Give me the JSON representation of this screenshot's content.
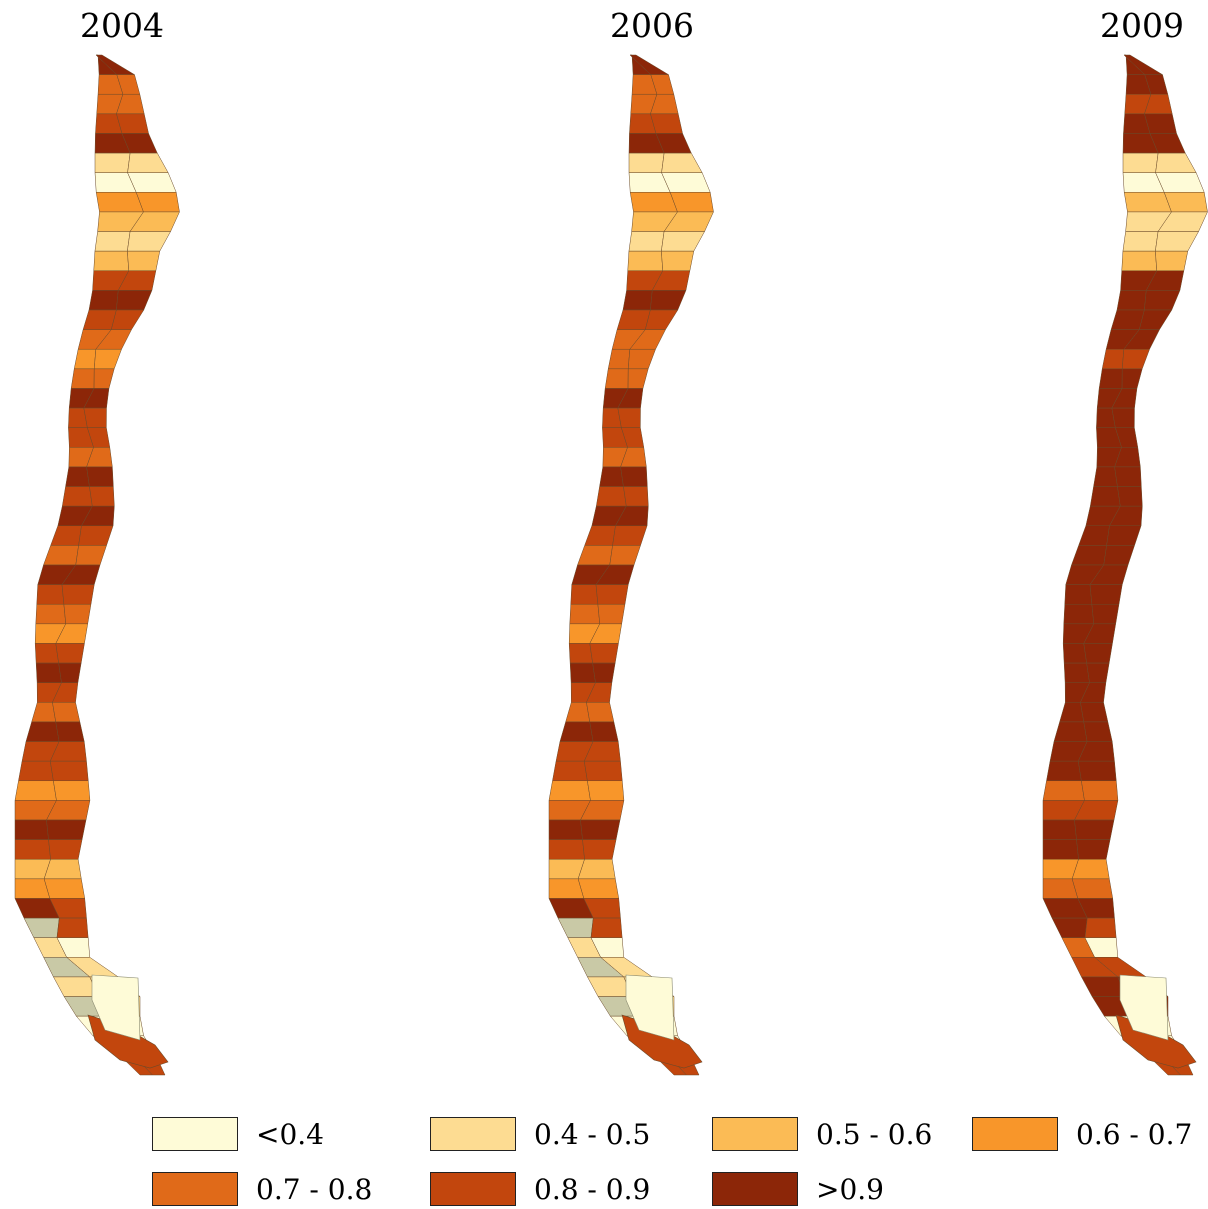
{
  "panels": [
    {
      "year": "2004"
    },
    {
      "year": "2006"
    },
    {
      "year": "2009"
    }
  ],
  "legend": [
    {
      "label": "<0.4",
      "color": "#fefbd7"
    },
    {
      "label": "0.4 - 0.5",
      "color": "#fddc92"
    },
    {
      "label": "0.5 - 0.6",
      "color": "#fbbb55"
    },
    {
      "label": "0.6 - 0.7",
      "color": "#f8962a"
    },
    {
      "label": "0.7 - 0.8",
      "color": "#e06a19"
    },
    {
      "label": "0.8 - 0.9",
      "color": "#c2460d"
    },
    {
      "label": ">0.9",
      "color": "#8c2608"
    }
  ],
  "fjord_color": "#c9c9a6",
  "chart_data": {
    "type": "choropleth",
    "classes": [
      "<0.4",
      "0.4 - 0.5",
      "0.5 - 0.6",
      "0.6 - 0.7",
      "0.7 - 0.8",
      "0.8 - 0.9",
      ">0.9"
    ],
    "maps": [
      {
        "year": "2004",
        "zones": [
          6,
          4,
          4,
          5,
          6,
          1,
          0,
          3,
          2,
          1,
          2,
          5,
          6,
          5,
          4,
          3,
          4,
          6,
          5,
          5,
          4,
          6,
          5,
          6,
          5,
          4,
          6,
          5,
          4,
          3,
          5,
          6,
          5,
          4,
          6,
          5,
          5,
          3,
          4,
          6,
          5,
          2,
          3,
          6,
          5,
          1,
          1,
          1,
          1,
          0,
          0,
          5
        ]
      },
      {
        "year": "2006",
        "zones": [
          6,
          4,
          4,
          5,
          6,
          1,
          0,
          3,
          2,
          1,
          2,
          5,
          6,
          5,
          4,
          4,
          4,
          6,
          5,
          5,
          4,
          6,
          5,
          6,
          5,
          4,
          6,
          5,
          4,
          3,
          5,
          6,
          5,
          4,
          6,
          5,
          5,
          3,
          4,
          6,
          5,
          2,
          3,
          6,
          5,
          1,
          1,
          1,
          1,
          0,
          0,
          5
        ]
      },
      {
        "year": "2009",
        "zones": [
          6,
          6,
          5,
          6,
          6,
          1,
          0,
          2,
          1,
          1,
          2,
          6,
          6,
          6,
          6,
          5,
          6,
          6,
          6,
          6,
          6,
          6,
          6,
          6,
          6,
          6,
          6,
          6,
          6,
          6,
          6,
          6,
          6,
          6,
          6,
          6,
          6,
          4,
          5,
          6,
          6,
          3,
          4,
          6,
          6,
          4,
          5,
          6,
          6,
          0,
          0,
          5
        ]
      }
    ]
  }
}
